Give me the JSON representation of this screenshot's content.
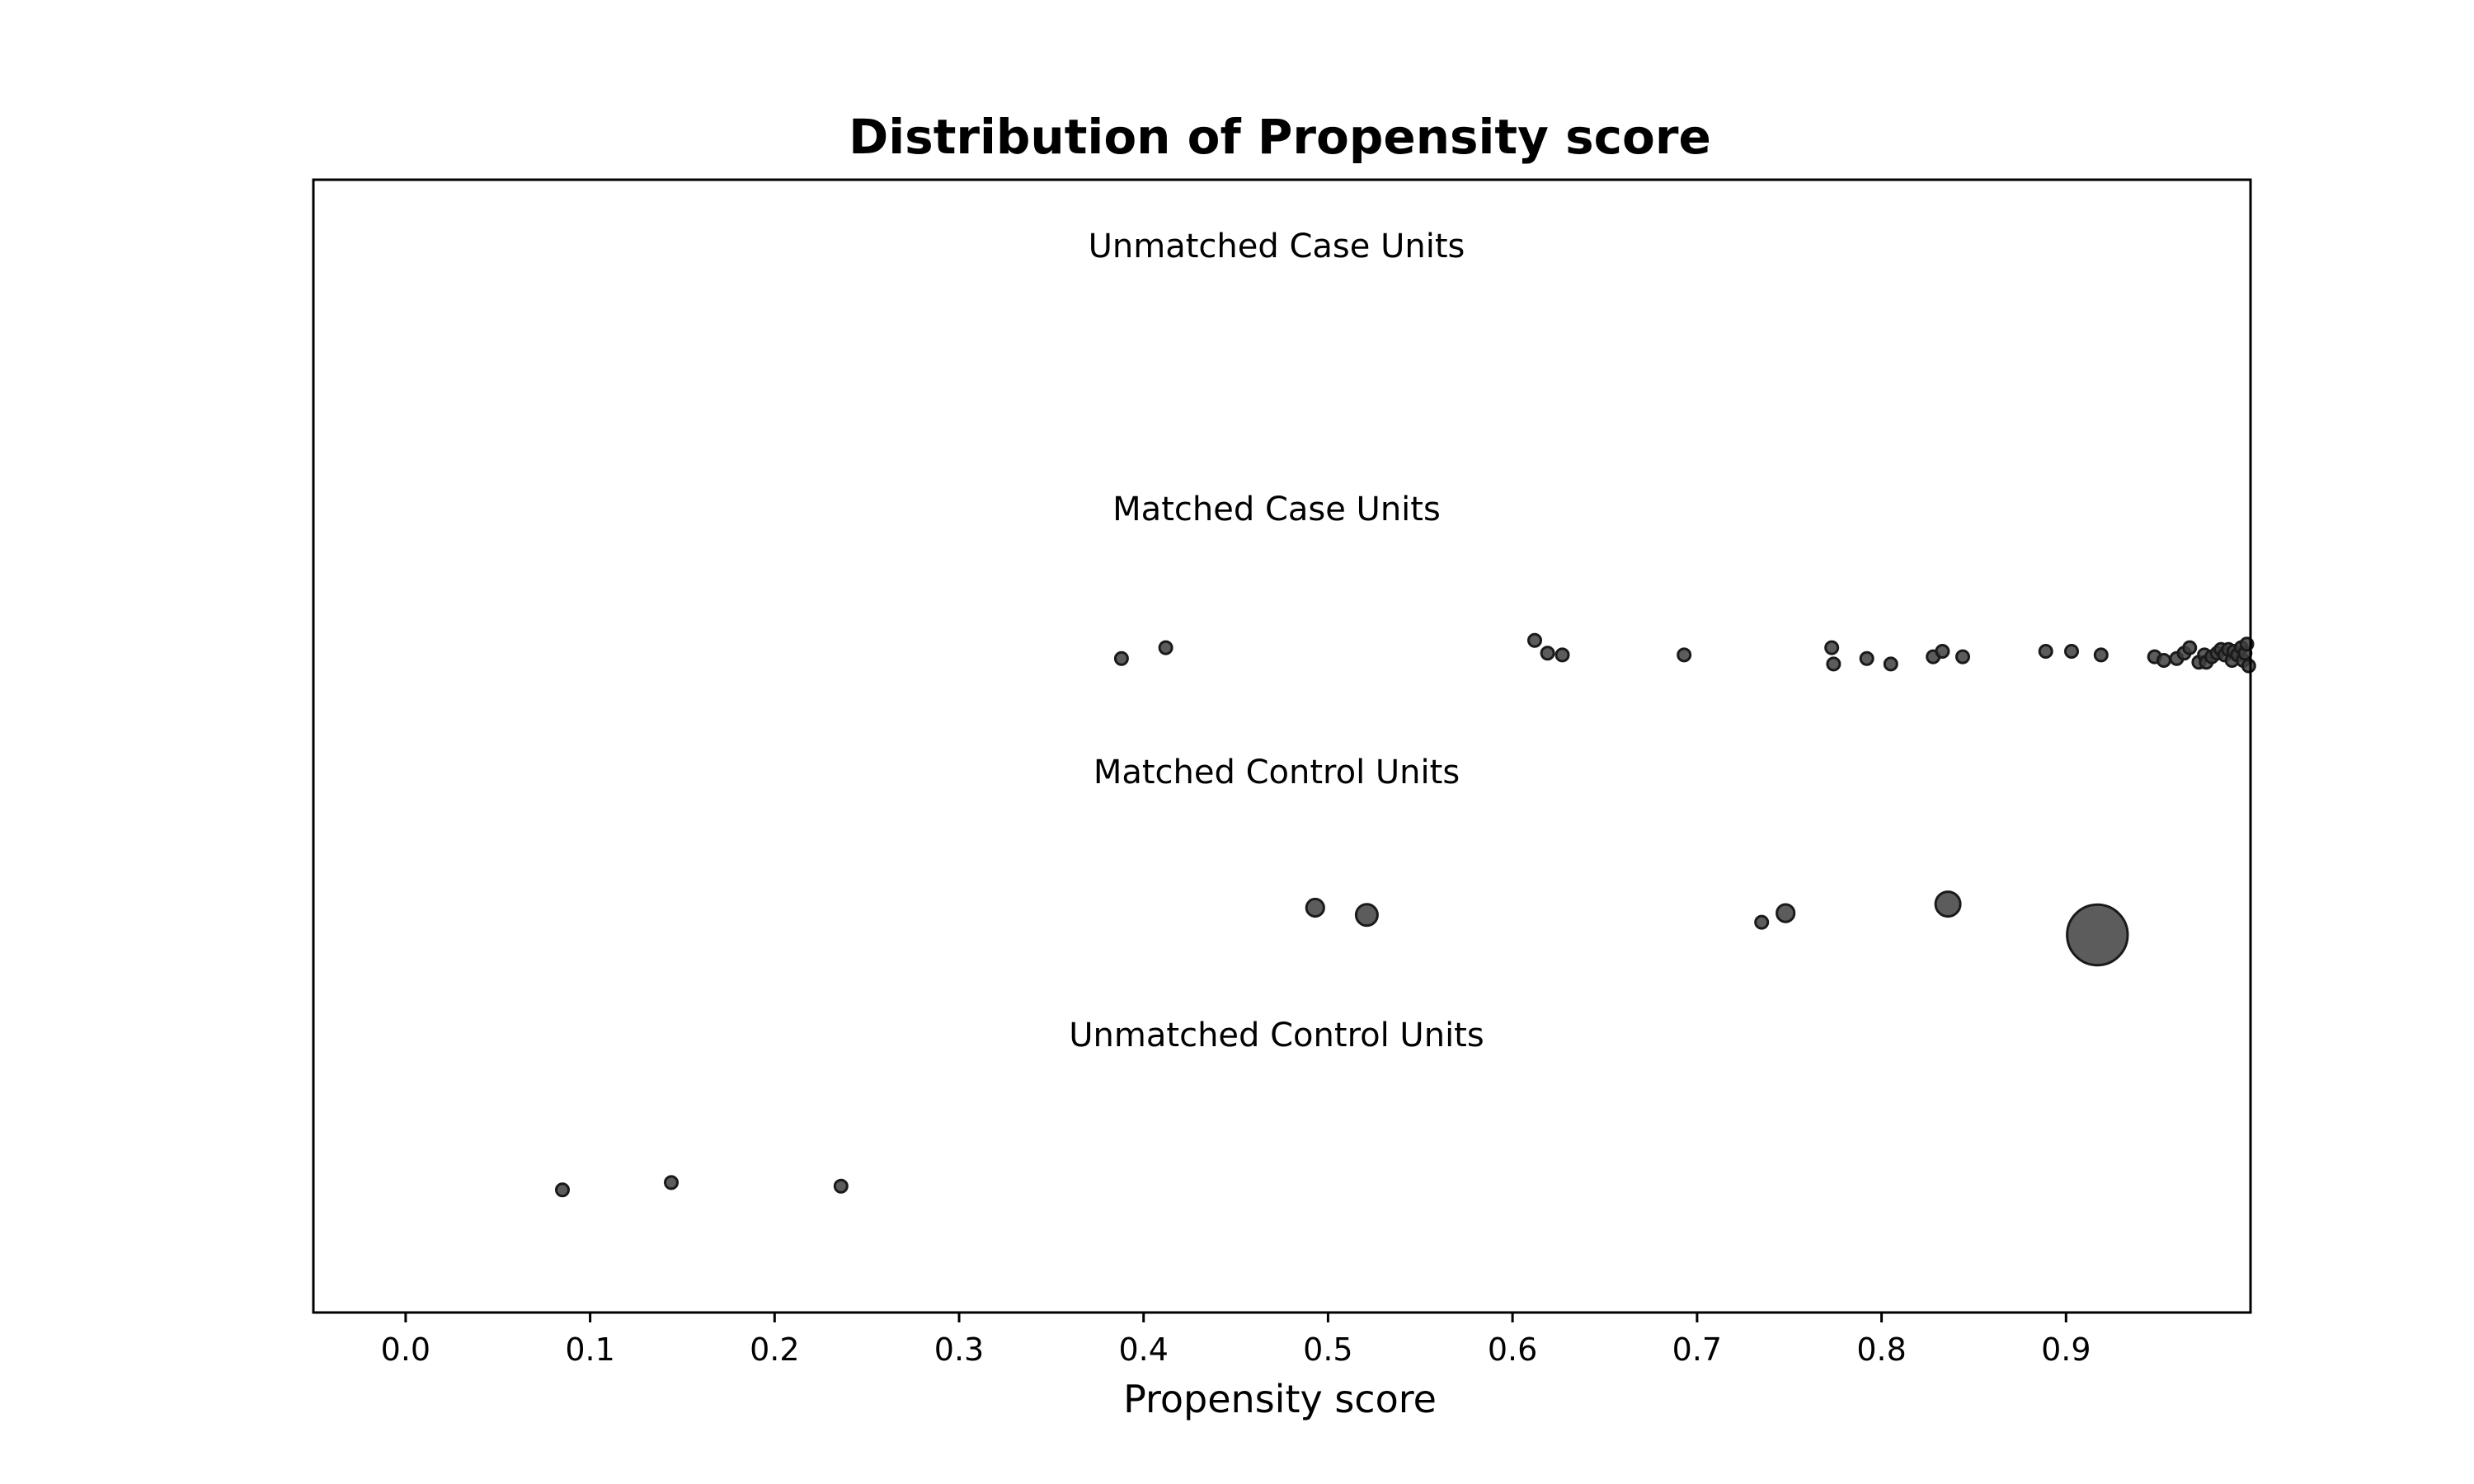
{
  "chart_data": {
    "type": "scatter",
    "title": "Distribution of Propensity score",
    "xlabel": "Propensity score",
    "ylabel": "",
    "xlim": [
      -0.05,
      1.0
    ],
    "xticks": [
      0.0,
      0.1,
      0.2,
      0.3,
      0.4,
      0.5,
      0.6,
      0.7,
      0.8,
      0.9
    ],
    "xtick_labels": [
      "0.0",
      "0.1",
      "0.2",
      "0.3",
      "0.4",
      "0.5",
      "0.6",
      "0.7",
      "0.8",
      "0.9"
    ],
    "grid": false,
    "marker_color": "#404040",
    "marker_edge_color": "#1a1a1a",
    "groups": [
      {
        "name": "Unmatched Case Units",
        "points": []
      },
      {
        "name": "Matched Case Units",
        "points": [
          {
            "x": 0.388,
            "jitter": -0.4,
            "size": 1
          },
          {
            "x": 0.412,
            "jitter": 0.2,
            "size": 1
          },
          {
            "x": 0.612,
            "jitter": 0.6,
            "size": 1
          },
          {
            "x": 0.619,
            "jitter": -0.1,
            "size": 1
          },
          {
            "x": 0.627,
            "jitter": -0.2,
            "size": 1
          },
          {
            "x": 0.693,
            "jitter": -0.2,
            "size": 1
          },
          {
            "x": 0.773,
            "jitter": 0.2,
            "size": 1
          },
          {
            "x": 0.774,
            "jitter": -0.7,
            "size": 1
          },
          {
            "x": 0.792,
            "jitter": -0.4,
            "size": 1
          },
          {
            "x": 0.805,
            "jitter": -0.7,
            "size": 1
          },
          {
            "x": 0.828,
            "jitter": -0.3,
            "size": 1
          },
          {
            "x": 0.833,
            "jitter": 0.0,
            "size": 1
          },
          {
            "x": 0.844,
            "jitter": -0.3,
            "size": 1
          },
          {
            "x": 0.889,
            "jitter": 0.0,
            "size": 1
          },
          {
            "x": 0.903,
            "jitter": 0.0,
            "size": 1
          },
          {
            "x": 0.919,
            "jitter": -0.2,
            "size": 1
          },
          {
            "x": 0.948,
            "jitter": -0.3,
            "size": 1
          },
          {
            "x": 0.953,
            "jitter": -0.5,
            "size": 1
          },
          {
            "x": 0.96,
            "jitter": -0.4,
            "size": 1
          },
          {
            "x": 0.964,
            "jitter": -0.1,
            "size": 1
          },
          {
            "x": 0.967,
            "jitter": 0.2,
            "size": 1
          },
          {
            "x": 0.972,
            "jitter": -0.6,
            "size": 1
          },
          {
            "x": 0.975,
            "jitter": -0.2,
            "size": 1
          },
          {
            "x": 0.976,
            "jitter": -0.6,
            "size": 1
          },
          {
            "x": 0.979,
            "jitter": -0.3,
            "size": 1
          },
          {
            "x": 0.982,
            "jitter": -0.1,
            "size": 1
          },
          {
            "x": 0.984,
            "jitter": 0.1,
            "size": 1
          },
          {
            "x": 0.986,
            "jitter": -0.2,
            "size": 1
          },
          {
            "x": 0.988,
            "jitter": 0.1,
            "size": 1
          },
          {
            "x": 0.99,
            "jitter": -0.5,
            "size": 1
          },
          {
            "x": 0.991,
            "jitter": 0.0,
            "size": 1
          },
          {
            "x": 0.993,
            "jitter": -0.2,
            "size": 1
          },
          {
            "x": 0.995,
            "jitter": 0.2,
            "size": 1
          },
          {
            "x": 0.996,
            "jitter": -0.5,
            "size": 1
          },
          {
            "x": 0.997,
            "jitter": -0.1,
            "size": 1
          },
          {
            "x": 0.998,
            "jitter": 0.4,
            "size": 1
          },
          {
            "x": 0.999,
            "jitter": -0.8,
            "size": 1
          }
        ]
      },
      {
        "name": "Matched Control Units",
        "points": [
          {
            "x": 0.493,
            "jitter": 0.5,
            "size": 2
          },
          {
            "x": 0.521,
            "jitter": 0.1,
            "size": 3
          },
          {
            "x": 0.735,
            "jitter": -0.3,
            "size": 1
          },
          {
            "x": 0.748,
            "jitter": 0.2,
            "size": 2
          },
          {
            "x": 0.836,
            "jitter": 0.7,
            "size": 4
          },
          {
            "x": 0.917,
            "jitter": -1.0,
            "size": 24
          }
        ]
      },
      {
        "name": "Unmatched Control Units",
        "points": [
          {
            "x": 0.085,
            "jitter": -0.6,
            "size": 1
          },
          {
            "x": 0.144,
            "jitter": -0.2,
            "size": 1
          },
          {
            "x": 0.236,
            "jitter": -0.4,
            "size": 1
          }
        ]
      }
    ]
  }
}
